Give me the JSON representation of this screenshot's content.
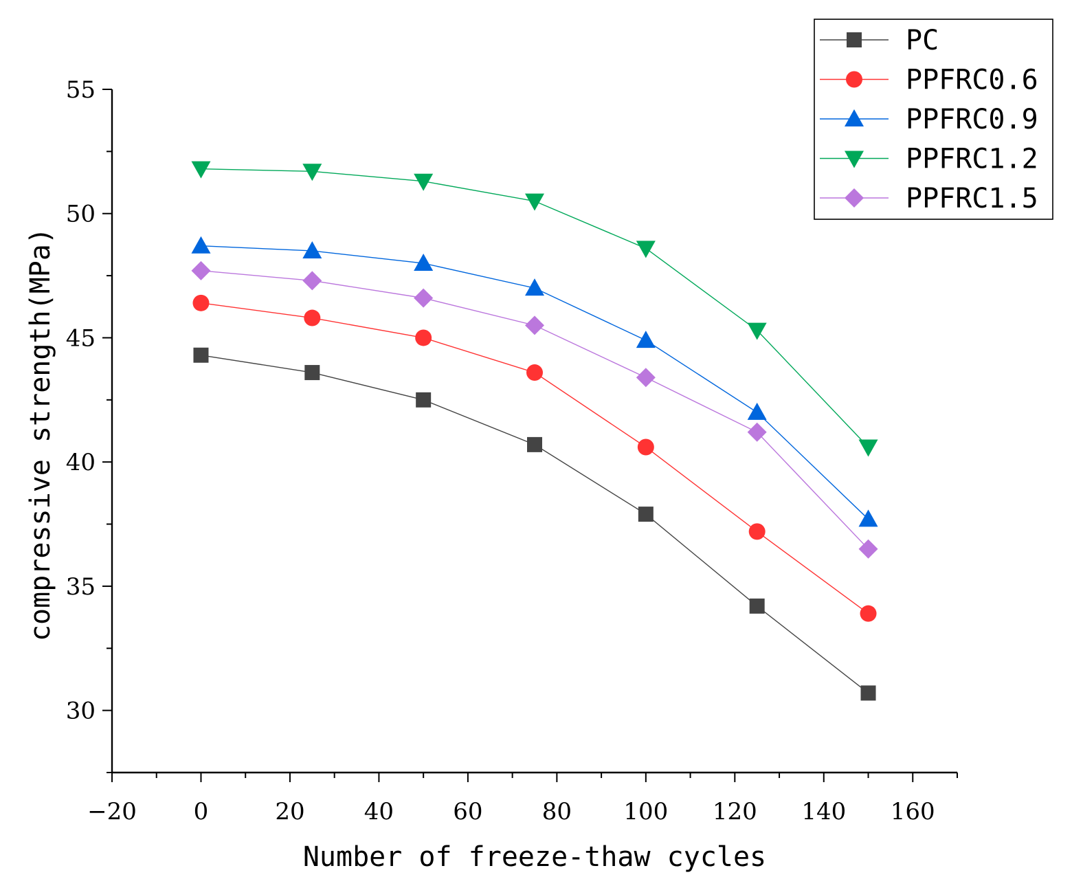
{
  "chart_data": {
    "type": "line",
    "title": "",
    "xlabel": "Number of freeze-thaw cycles",
    "ylabel": "compressive strength(MPa)",
    "xlim": [
      -20,
      170
    ],
    "ylim": [
      27.5,
      55
    ],
    "x_ticks": [
      -20,
      0,
      20,
      40,
      60,
      80,
      100,
      120,
      140,
      160
    ],
    "x_tick_labels": [
      "−20",
      "0",
      "20",
      "40",
      "60",
      "80",
      "100",
      "120",
      "140",
      "160"
    ],
    "y_ticks": [
      30,
      35,
      40,
      45,
      50,
      55
    ],
    "y_tick_labels": [
      "30",
      "35",
      "40",
      "45",
      "50",
      "55"
    ],
    "grid": false,
    "legend_position": "top-right",
    "x": [
      0,
      25,
      50,
      75,
      100,
      125,
      150
    ],
    "series": [
      {
        "name": "PC",
        "marker": "square",
        "color": "#444444",
        "values": [
          44.3,
          43.6,
          42.5,
          40.7,
          37.9,
          34.2,
          30.7
        ]
      },
      {
        "name": "PPFRC0.6",
        "marker": "circle",
        "color": "#FF3333",
        "values": [
          46.4,
          45.8,
          45.0,
          43.6,
          40.6,
          37.2,
          33.9
        ]
      },
      {
        "name": "PPFRC0.9",
        "marker": "triangle-up",
        "color": "#0066DD",
        "values": [
          48.7,
          48.5,
          48.0,
          47.0,
          44.9,
          42.0,
          37.7
        ]
      },
      {
        "name": "PPFRC1.2",
        "marker": "triangle-down",
        "color": "#00A859",
        "values": [
          51.8,
          51.7,
          51.3,
          50.5,
          48.6,
          45.3,
          40.6
        ]
      },
      {
        "name": "PPFRC1.5",
        "marker": "diamond",
        "color": "#BB77DD",
        "values": [
          47.7,
          47.3,
          46.6,
          45.5,
          43.4,
          41.2,
          36.5
        ]
      }
    ]
  }
}
